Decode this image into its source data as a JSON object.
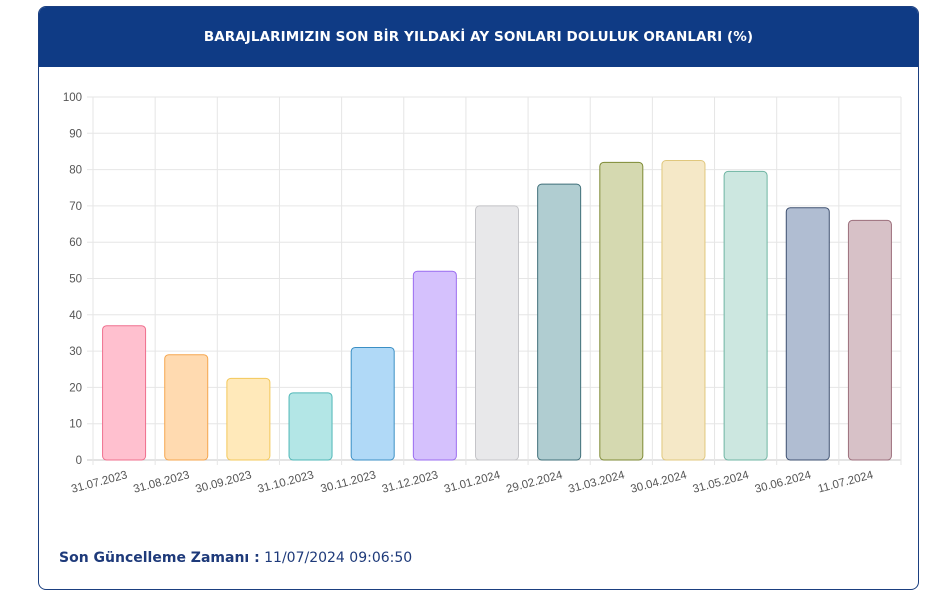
{
  "header": {
    "title": "BARAJLARIMIZIN SON BİR YILDAKİ AY SONLARI DOLULUK ORANLARI (%)"
  },
  "footer": {
    "label": "Son Güncelleme Zamanı :",
    "value": "11/07/2024 09:06:50"
  },
  "chart_data": {
    "type": "bar",
    "title": "BARAJLARIMIZIN SON BİR YILDAKİ AY SONLARI DOLULUK ORANLARI (%)",
    "xlabel": "",
    "ylabel": "",
    "ylim": [
      0,
      100
    ],
    "yticks": [
      "0",
      "10",
      "20",
      "30",
      "40",
      "50",
      "60",
      "70",
      "80",
      "90",
      "100"
    ],
    "grid": true,
    "categories": [
      "31.07.2023",
      "31.08.2023",
      "30.09.2023",
      "31.10.2023",
      "30.11.2023",
      "31.12.2023",
      "31.01.2024",
      "29.02.2024",
      "31.03.2024",
      "30.04.2024",
      "31.05.2024",
      "30.06.2024",
      "11.07.2024"
    ],
    "values": [
      37,
      29,
      22.5,
      18.5,
      31,
      52,
      70,
      76,
      82,
      82.5,
      79.5,
      69.5,
      66
    ],
    "colors": [
      {
        "fill": "#ffc0cf",
        "stroke": "#ef6f8d"
      },
      {
        "fill": "#ffdab0",
        "stroke": "#f5a64e"
      },
      {
        "fill": "#ffe9ba",
        "stroke": "#f3c85a"
      },
      {
        "fill": "#b3e6e6",
        "stroke": "#4fb7b7"
      },
      {
        "fill": "#b0d9f7",
        "stroke": "#3b8fc4"
      },
      {
        "fill": "#d5c1fd",
        "stroke": "#9a6cf0"
      },
      {
        "fill": "#e8e8ea",
        "stroke": "#c4c4c8"
      },
      {
        "fill": "#b0cdd1",
        "stroke": "#3f6f79"
      },
      {
        "fill": "#d5d9b0",
        "stroke": "#7e8a35"
      },
      {
        "fill": "#f5e8c7",
        "stroke": "#e0c77d"
      },
      {
        "fill": "#cce7e0",
        "stroke": "#6fb5a3"
      },
      {
        "fill": "#b0bdd2",
        "stroke": "#3e5070"
      },
      {
        "fill": "#d7c1c7",
        "stroke": "#9c6f7c"
      }
    ]
  }
}
